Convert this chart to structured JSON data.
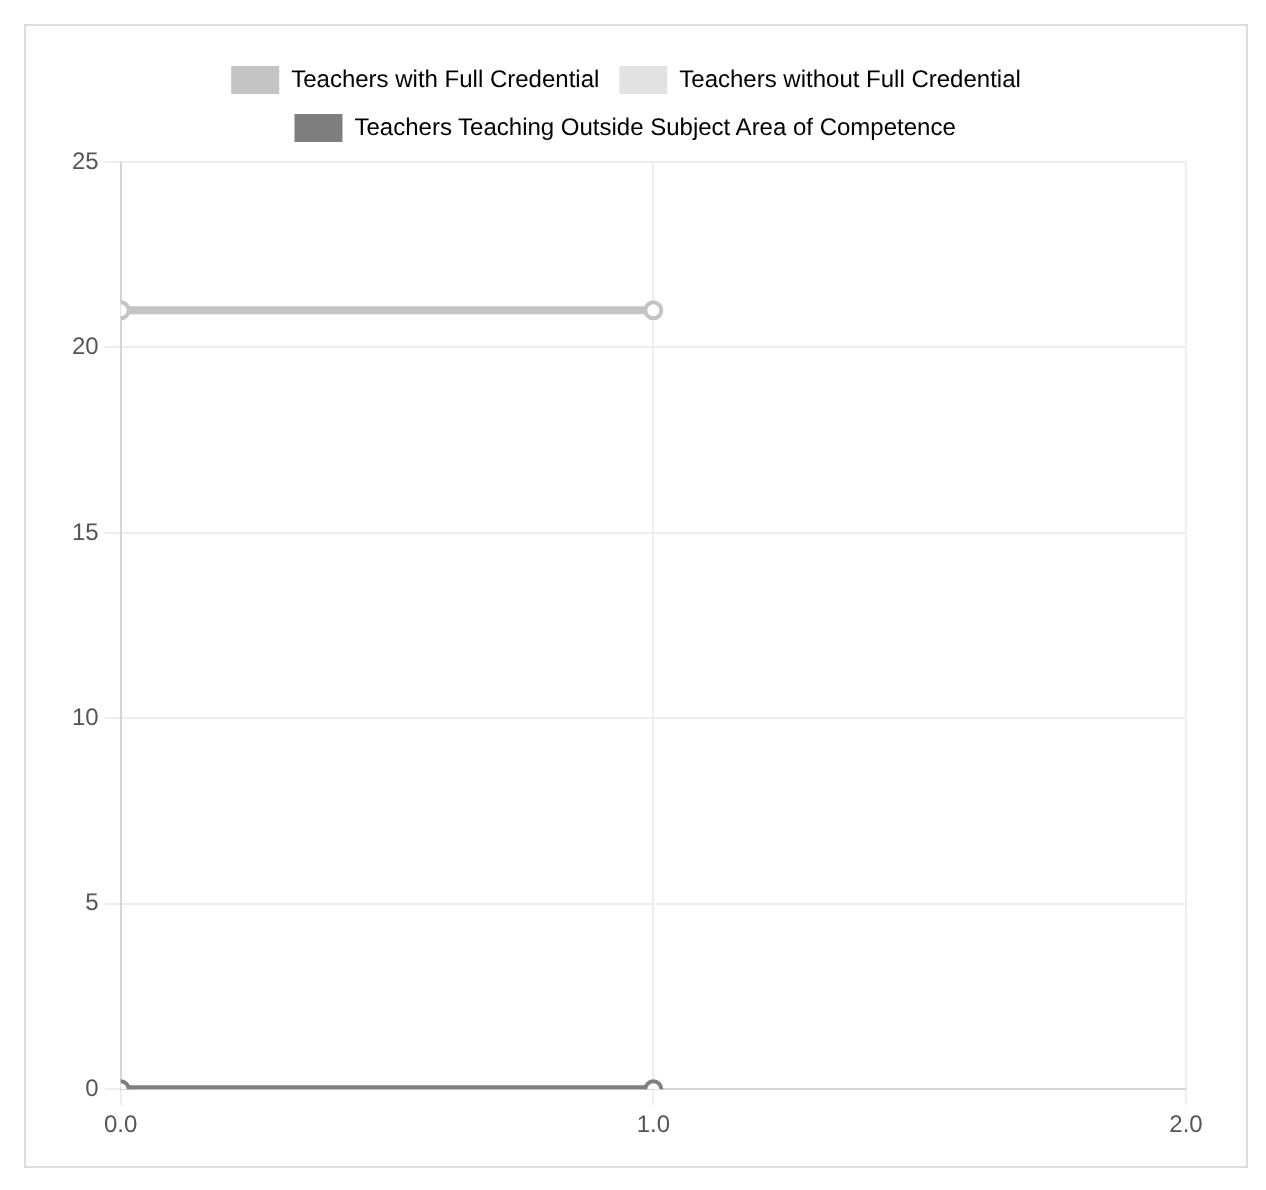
{
  "chart_data": {
    "type": "line",
    "x": [
      0,
      1
    ],
    "series": [
      {
        "name": "Teachers with Full Credential",
        "color": "#c4c4c4",
        "values": [
          21,
          21
        ]
      },
      {
        "name": "Teachers without Full Credential",
        "color": "#e2e2e2",
        "values": [
          null,
          null
        ]
      },
      {
        "name": "Teachers Teaching Outside Subject Area of Competence",
        "color": "#7f7f7f",
        "values": [
          0,
          0
        ]
      }
    ],
    "xlim": [
      0,
      2
    ],
    "xticks": [
      {
        "value": 0,
        "label": "0.0"
      },
      {
        "value": 1,
        "label": "1.0"
      },
      {
        "value": 2,
        "label": "2.0"
      }
    ],
    "ylim": [
      0,
      25
    ],
    "yticks": [
      0,
      5,
      10,
      15,
      20,
      25
    ],
    "grid": true,
    "legend": "top",
    "marker": "circle"
  }
}
